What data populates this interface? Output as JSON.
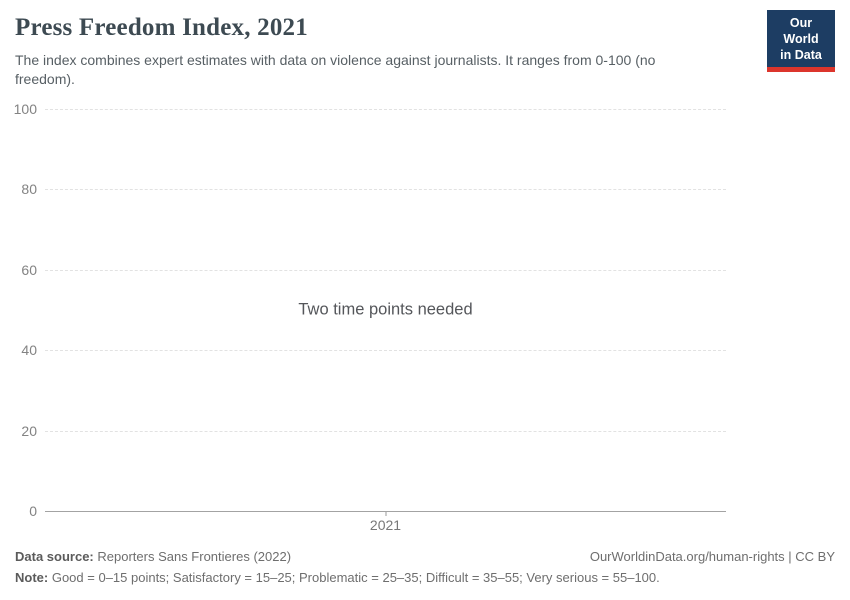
{
  "header": {
    "title": "Press Freedom Index, 2021",
    "subtitle": "The index combines expert estimates with data on violence against journalists. It ranges from 0-100 (no freedom).",
    "logo": {
      "line1": "Our World",
      "line2": "in Data"
    }
  },
  "chart_data": {
    "type": "line",
    "title": "Press Freedom Index, 2021",
    "series": [],
    "message": "Two time points needed",
    "categories": [
      2021
    ],
    "xticks": [
      "2021"
    ],
    "yticks": [
      0,
      20,
      40,
      60,
      80,
      100
    ],
    "ylim": [
      0,
      100
    ],
    "xlabel": "",
    "ylabel": "",
    "grid": "horizontal-dashed",
    "legend_position": "none"
  },
  "footer": {
    "datasource_label": "Data source:",
    "datasource_value": "Reporters Sans Frontieres (2022)",
    "link": "OurWorldinData.org/human-rights | CC BY",
    "note_label": "Note:",
    "note_value": "Good = 0–15 points; Satisfactory = 15–25; Problematic = 25–35; Difficult = 35–55; Very serious = 55–100."
  },
  "colors": {
    "logo_background": "#1d3d63",
    "logo_stripe": "#dc352c",
    "title_text": "#3d4a52",
    "gridline": "#e2e2e2",
    "axis_line": "#a3a3a3",
    "tick_label": "#838383"
  }
}
